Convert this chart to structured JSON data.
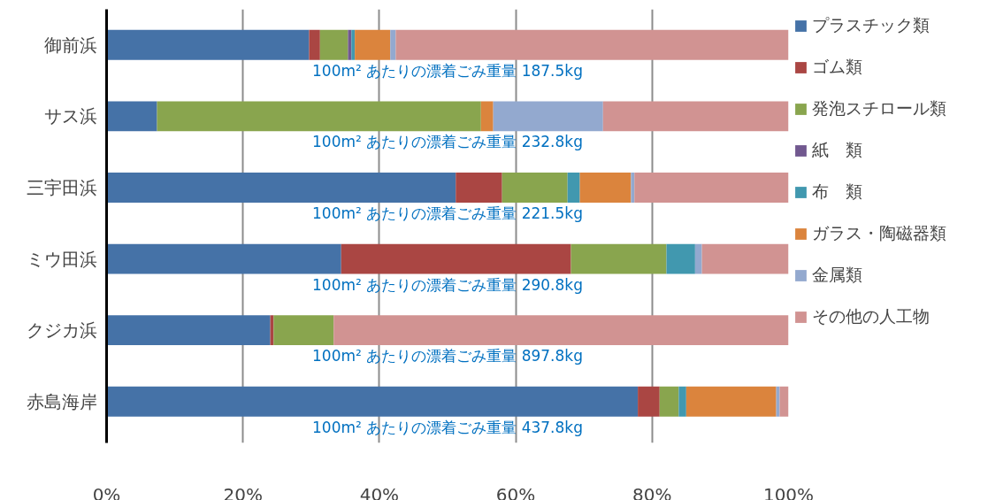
{
  "chart_data": {
    "type": "bar",
    "orientation": "horizontal",
    "stacked": true,
    "categories": [
      "御前浜",
      "サス浜",
      "三宇田浜",
      "ミウ田浜",
      "クジカ浜",
      "赤島海岸"
    ],
    "series": [
      {
        "name": "プラスチック類",
        "color": "#4572a7",
        "values": [
          29.7,
          7.4,
          51.2,
          34.4,
          24.0,
          77.9
        ]
      },
      {
        "name": "ゴム類",
        "color": "#aa4643",
        "values": [
          1.6,
          0,
          6.8,
          33.7,
          0.5,
          3.2
        ]
      },
      {
        "name": "発泡スチロール類",
        "color": "#89a54e",
        "values": [
          4.1,
          47.5,
          9.6,
          14.0,
          8.8,
          2.8
        ]
      },
      {
        "name": "紙　類",
        "color": "#71588f",
        "values": [
          0.5,
          0,
          0,
          0,
          0,
          0
        ]
      },
      {
        "name": "布　類",
        "color": "#4198af",
        "values": [
          0.5,
          0,
          1.8,
          4.2,
          0,
          1.1
        ]
      },
      {
        "name": "ガラス・陶磁器類",
        "color": "#db843d",
        "values": [
          5.2,
          1.8,
          7.5,
          0,
          0,
          13.2
        ]
      },
      {
        "name": "金属類",
        "color": "#93a9cf",
        "values": [
          0.8,
          16.1,
          0.5,
          1.0,
          0,
          0.5
        ]
      },
      {
        "name": "その他の人工物",
        "color": "#d19392",
        "values": [
          57.6,
          27.2,
          22.6,
          12.7,
          66.7,
          1.3
        ]
      }
    ],
    "annotations": [
      "100m² あたりの漂着ごみ重量 187.5kg",
      "100m² あたりの漂着ごみ重量 232.8kg",
      "100m² あたりの漂着ごみ重量 221.5kg",
      "100m² あたりの漂着ごみ重量 290.8kg",
      "100m² あたりの漂着ごみ重量 897.8kg",
      "100m² あたりの漂着ごみ重量 437.8kg"
    ],
    "xlim": [
      0,
      100
    ],
    "xticks": [
      {
        "value": 0,
        "label": "0%"
      },
      {
        "value": 20,
        "label": "20%"
      },
      {
        "value": 40,
        "label": "40%"
      },
      {
        "value": 60,
        "label": "60%"
      },
      {
        "value": 80,
        "label": "80%"
      },
      {
        "value": 100,
        "label": "100%"
      }
    ],
    "grid": "x",
    "legend": "right"
  }
}
